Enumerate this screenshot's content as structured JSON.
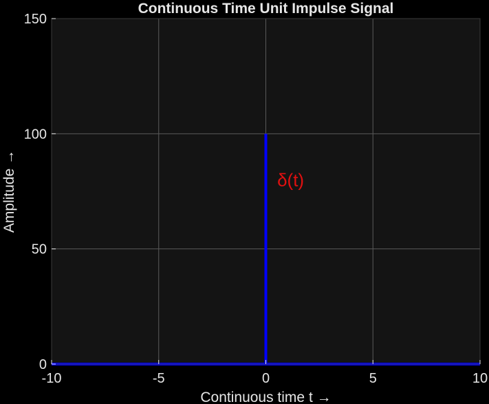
{
  "chart_data": {
    "type": "line",
    "title": "Continuous Time Unit Impulse Signal",
    "xlabel": "Continuous time t →",
    "ylabel": "Amplitude →",
    "xlim": [
      -10,
      10
    ],
    "ylim": [
      0,
      150
    ],
    "xticks": [
      -10,
      -5,
      0,
      5,
      10
    ],
    "yticks": [
      0,
      50,
      100,
      150
    ],
    "grid": true,
    "series": [
      {
        "color": "#0000ff",
        "x": [
          -10,
          0,
          0,
          0,
          10
        ],
        "y": [
          0,
          0,
          100,
          0,
          0
        ]
      }
    ],
    "annotations": [
      {
        "text": "δ(t)",
        "x": 0.5,
        "y": 80,
        "color": "#e01010"
      }
    ],
    "colors": {
      "figure_background": "#000000",
      "plot_background": "#141414",
      "grid": "#5a5a5a",
      "text": "#e6e6e6"
    }
  }
}
